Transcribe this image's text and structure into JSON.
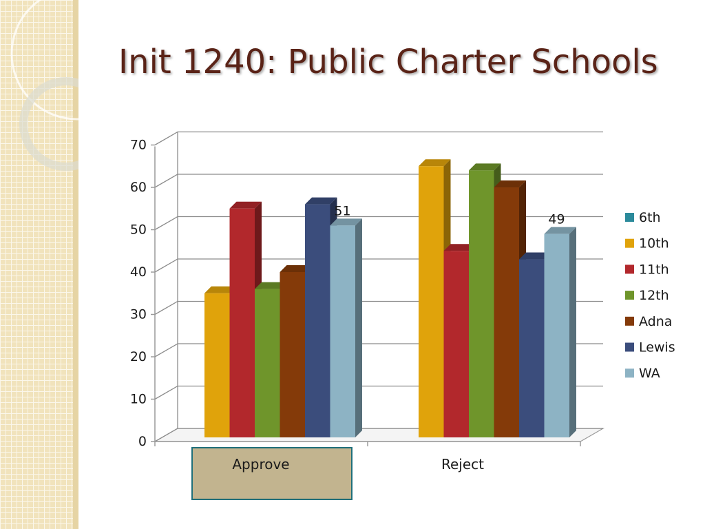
{
  "slide": {
    "title": "Init 1240: Public Charter Schools"
  },
  "colors": {
    "title": "#5a2317",
    "side_panel": "#f1e3bc",
    "highlight_fill": "#c2b48f",
    "highlight_border": "#1f6f7a"
  },
  "chart_data": {
    "type": "bar",
    "title": "",
    "xlabel": "",
    "ylabel": "",
    "three_d": true,
    "grid": true,
    "ylim": [
      0,
      70
    ],
    "yticks": [
      0,
      10,
      20,
      30,
      40,
      50,
      60,
      70
    ],
    "categories": [
      "Approve",
      "Reject"
    ],
    "highlighted_category": "Approve",
    "legend_position": "right",
    "series": [
      {
        "name": "6th",
        "color": "#2b8a9b",
        "values": [
          null,
          null
        ]
      },
      {
        "name": "10th",
        "color": "#e0a30b",
        "values": [
          35,
          65
        ]
      },
      {
        "name": "11th",
        "color": "#b2282c",
        "values": [
          55,
          45
        ]
      },
      {
        "name": "12th",
        "color": "#6f952b",
        "values": [
          36,
          64
        ]
      },
      {
        "name": "Adna",
        "color": "#843a09",
        "values": [
          40,
          60
        ]
      },
      {
        "name": "Lewis",
        "color": "#3b4d7c",
        "values": [
          56,
          43
        ]
      },
      {
        "name": "WA",
        "color": "#8db3c4",
        "values": [
          51,
          49
        ]
      }
    ],
    "data_labels": [
      {
        "series": "WA",
        "category": "Approve",
        "text": "51"
      },
      {
        "series": "WA",
        "category": "Reject",
        "text": "49"
      }
    ]
  }
}
